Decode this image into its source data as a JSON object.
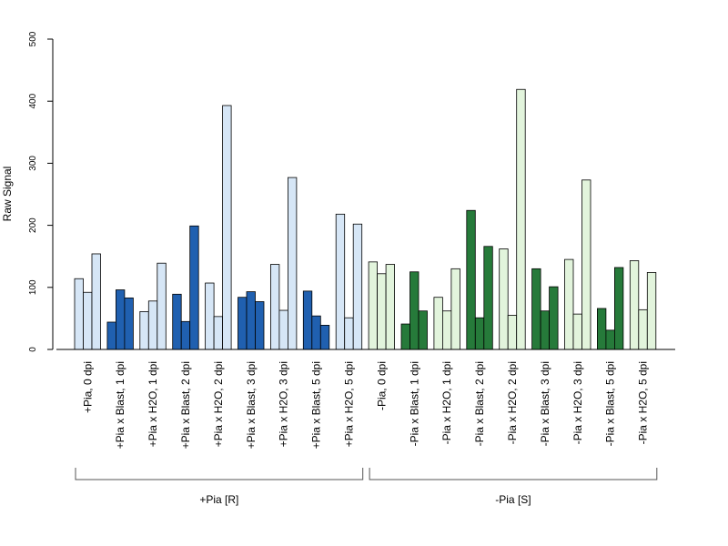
{
  "chart_data": {
    "type": "bar",
    "ylabel": "Raw Signal",
    "ylim": [
      0,
      500
    ],
    "yticks": [
      0,
      100,
      200,
      300,
      400,
      500
    ],
    "grid": false,
    "bars_per_category": 3,
    "categories": [
      "+Pia, 0 dpi",
      "+Pia x Blast, 1 dpi",
      "+Pia x H2O, 1 dpi",
      "+Pia x Blast, 2 dpi",
      "+Pia x H2O, 2 dpi",
      "+Pia x Blast, 3 dpi",
      "+Pia x H2O, 3 dpi",
      "+Pia x Blast, 5 dpi",
      "+Pia x H2O, 5 dpi",
      "-Pia, 0 dpi",
      "-Pia x Blast, 1 dpi",
      "-Pia x H2O, 1 dpi",
      "-Pia x Blast, 2 dpi",
      "-Pia x H2O, 2 dpi",
      "-Pia x Blast, 3 dpi",
      "-Pia x H2O, 3 dpi",
      "-Pia x Blast, 5 dpi",
      "-Pia x H2O, 5 dpi"
    ],
    "values": [
      [
        114,
        92,
        154
      ],
      [
        44,
        96,
        83
      ],
      [
        61,
        78,
        139
      ],
      [
        89,
        45,
        199
      ],
      [
        107,
        53,
        393
      ],
      [
        84,
        93,
        77
      ],
      [
        137,
        63,
        277
      ],
      [
        94,
        54,
        39
      ],
      [
        218,
        51,
        202
      ],
      [
        141,
        122,
        137
      ],
      [
        41,
        125,
        62
      ],
      [
        84,
        62,
        130
      ],
      [
        224,
        51,
        166
      ],
      [
        162,
        55,
        419
      ],
      [
        130,
        62,
        101
      ],
      [
        145,
        57,
        273
      ],
      [
        66,
        31,
        132
      ],
      [
        143,
        64,
        124
      ]
    ],
    "bar_colors": [
      "#d6e6f6",
      "#2060b0",
      "#d6e6f6",
      "#2060b0",
      "#d6e6f6",
      "#2060b0",
      "#d6e6f6",
      "#2060b0",
      "#d6e6f6",
      "#e2f4dc",
      "#267a3a",
      "#e2f4dc",
      "#267a3a",
      "#e2f4dc",
      "#267a3a",
      "#e2f4dc",
      "#267a3a",
      "#e2f4dc"
    ],
    "groups": [
      {
        "label": "+Pia [R]",
        "first": 0,
        "last": 8
      },
      {
        "label": "-Pia [S]",
        "first": 9,
        "last": 17
      }
    ]
  }
}
